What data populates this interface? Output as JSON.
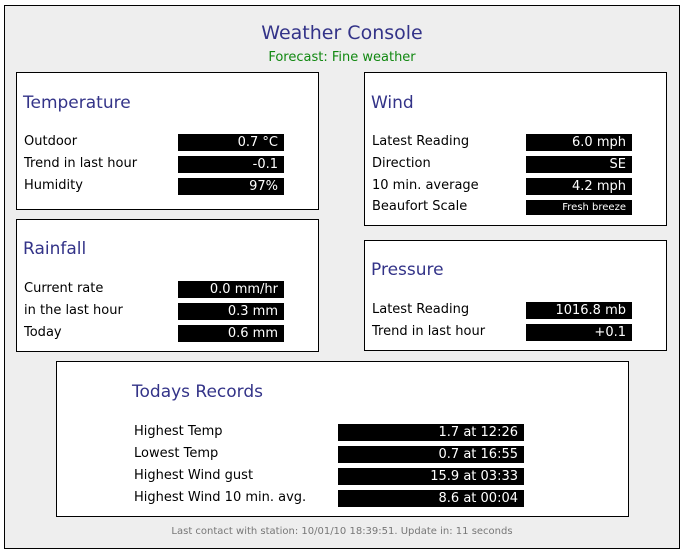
{
  "header": {
    "title": "Weather Console",
    "forecast": "Forecast: Fine weather"
  },
  "temperature": {
    "title": "Temperature",
    "rows": [
      {
        "label": "Outdoor",
        "value": "0.7 °C"
      },
      {
        "label": "Trend in last hour",
        "value": "-0.1"
      },
      {
        "label": "Humidity",
        "value": "97%"
      }
    ]
  },
  "rainfall": {
    "title": "Rainfall",
    "rows": [
      {
        "label": "Current rate",
        "value": "0.0 mm/hr"
      },
      {
        "label": "in the last hour",
        "value": "0.3 mm"
      },
      {
        "label": "Today",
        "value": "0.6 mm"
      }
    ]
  },
  "wind": {
    "title": "Wind",
    "rows": [
      {
        "label": "Latest Reading",
        "value": "6.0 mph"
      },
      {
        "label": "Direction",
        "value": "SE"
      },
      {
        "label": "10 min. average",
        "value": "4.2 mph"
      },
      {
        "label": "Beaufort Scale",
        "value": "Fresh breeze"
      }
    ]
  },
  "pressure": {
    "title": "Pressure",
    "rows": [
      {
        "label": "Latest Reading",
        "value": "1016.8 mb"
      },
      {
        "label": "Trend in last hour",
        "value": "+0.1"
      }
    ]
  },
  "records": {
    "title": "Todays Records",
    "rows": [
      {
        "label": "Highest Temp",
        "value": "1.7 at 12:26"
      },
      {
        "label": "Lowest Temp",
        "value": "0.7 at 16:55"
      },
      {
        "label": "Highest Wind gust",
        "value": "15.9 at 03:33"
      },
      {
        "label": "Highest Wind 10 min. avg.",
        "value": "8.6 at 00:04"
      }
    ]
  },
  "footer": "Last contact with station: 10/01/10 18:39:51. Update in: 11 seconds",
  "colors": {
    "title": "#333388",
    "forecast": "#118811",
    "background": "#eeeeee",
    "value_box": "#000000"
  }
}
